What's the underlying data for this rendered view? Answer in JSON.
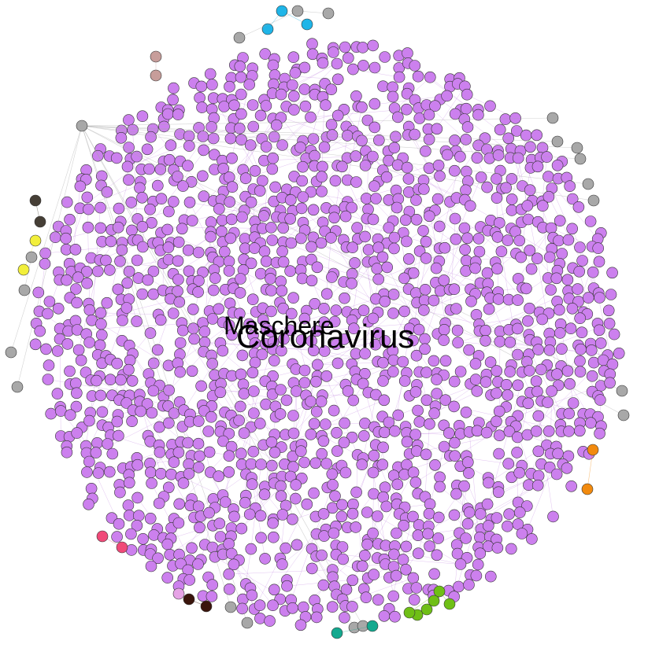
{
  "graph": {
    "main_cluster_color": "#cc80ee",
    "main_edge_color": "#b060d8",
    "node_stroke": "#333333",
    "large_labels": [
      {
        "text": "Coronavirus"
      },
      {
        "text": "Maschere"
      }
    ],
    "peripheral_groups": [
      {
        "color": "#1fb5e8"
      },
      {
        "color": "#a8a8a8"
      },
      {
        "color": "#c79d9a"
      },
      {
        "color": "#463f36"
      },
      {
        "color": "#f2ef3a"
      },
      {
        "color": "#f04a78"
      },
      {
        "color": "#3a150c"
      },
      {
        "color": "#e6a3e6"
      },
      {
        "color": "#6fbf16"
      },
      {
        "color": "#14a98f"
      },
      {
        "color": "#f28a0e"
      }
    ]
  }
}
